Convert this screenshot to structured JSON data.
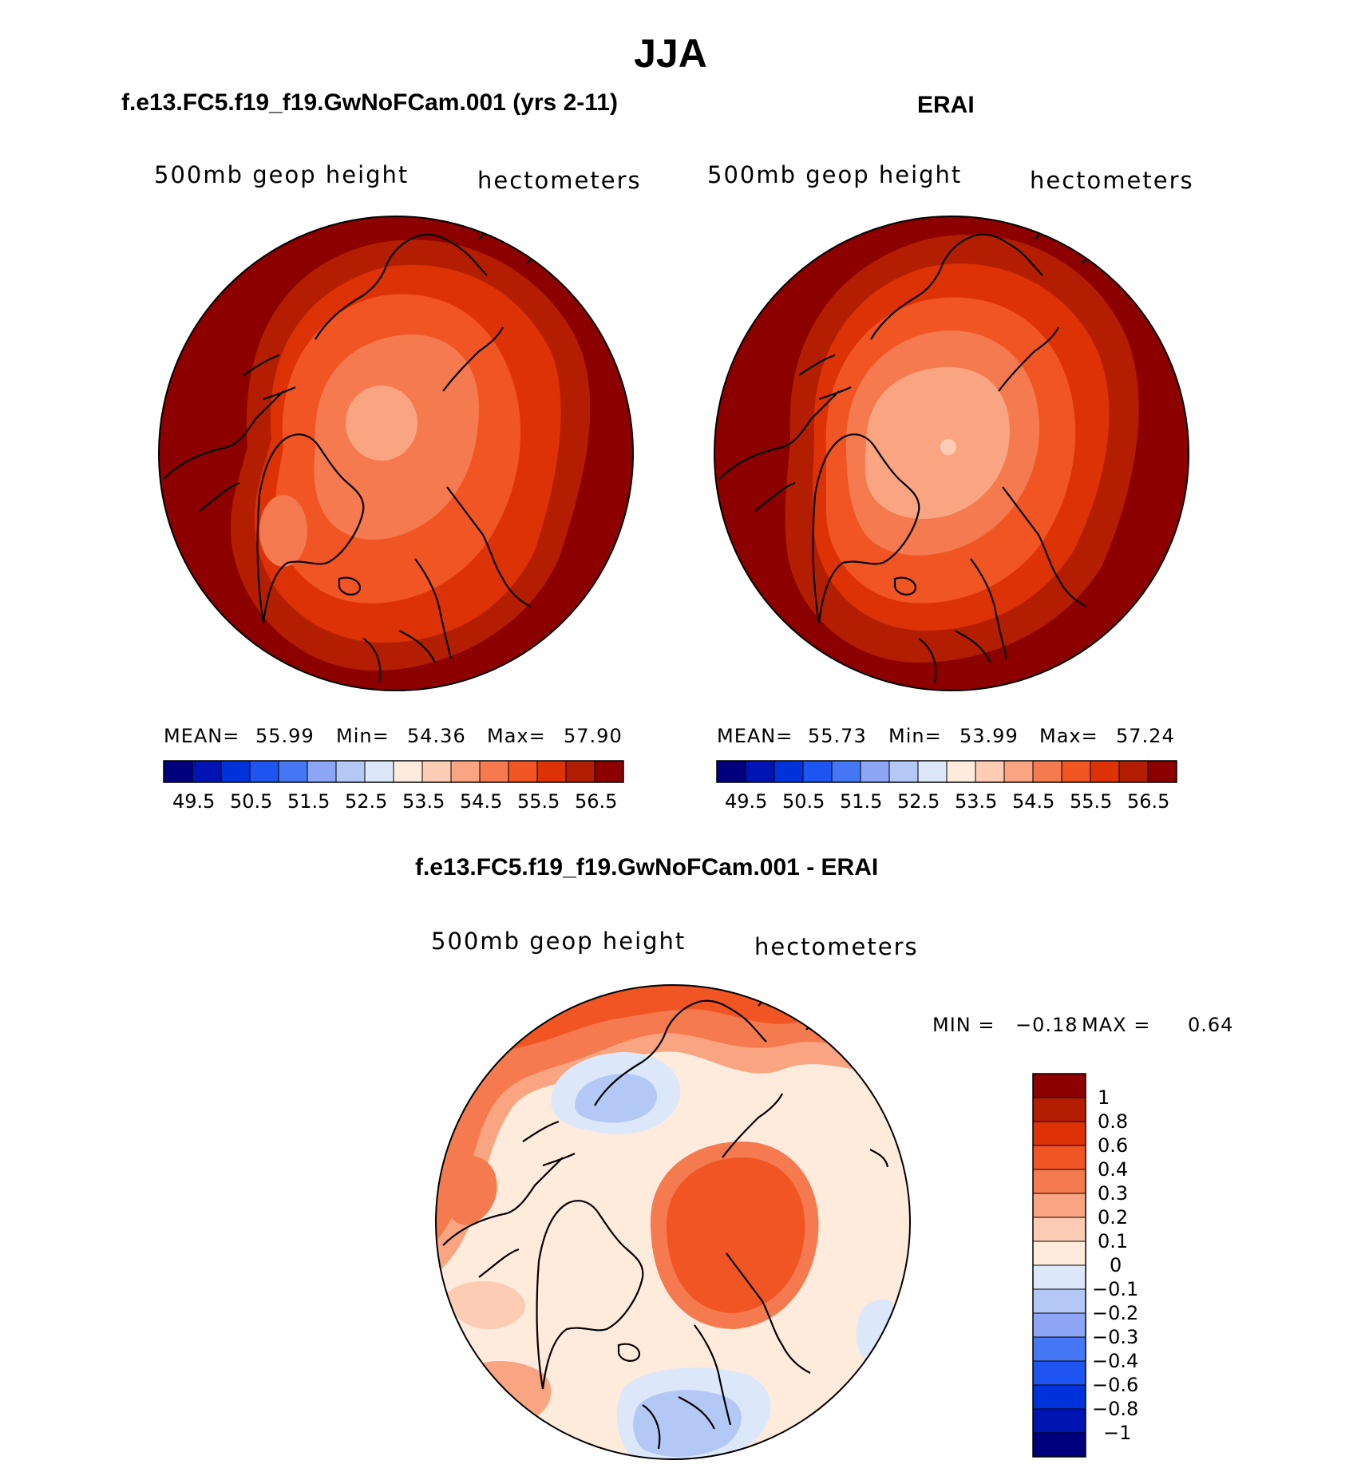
{
  "figure": {
    "title": "JJA"
  },
  "panels": [
    {
      "title": "f.e13.FC5.f19_f19.GwNoFCam.001 (yrs 2-11)",
      "variable": "500mb geop height",
      "units": "hectometers",
      "stats": {
        "mean_label": "MEAN=",
        "mean": "55.99",
        "min_label": "Min=",
        "min": "54.36",
        "max_label": "Max=",
        "max": "57.90"
      },
      "colorbar_ticks": [
        "49.5",
        "50.5",
        "51.5",
        "52.5",
        "53.5",
        "54.5",
        "55.5",
        "56.5"
      ]
    },
    {
      "title": "ERAI",
      "variable": "500mb geop height",
      "units": "hectometers",
      "stats": {
        "mean_label": "MEAN=",
        "mean": "55.73",
        "min_label": "Min=",
        "min": "53.99",
        "max_label": "Max=",
        "max": "57.24"
      },
      "colorbar_ticks": [
        "49.5",
        "50.5",
        "51.5",
        "52.5",
        "53.5",
        "54.5",
        "55.5",
        "56.5"
      ]
    },
    {
      "title": "f.e13.FC5.f19_f19.GwNoFCam.001 - ERAI",
      "variable": "500mb geop height",
      "units": "hectometers",
      "stats": {
        "min_label": "MIN =",
        "min": "−0.18",
        "max_label": "MAX =",
        "max": "0.64"
      },
      "colorbar_ticks": [
        "1",
        "0.8",
        "0.6",
        "0.4",
        "0.3",
        "0.2",
        "0.1",
        "0",
        "−0.1",
        "−0.2",
        "−0.3",
        "−0.4",
        "−0.6",
        "−0.8",
        "−1"
      ]
    }
  ],
  "colors": {
    "abs_scale": [
      "#00007f",
      "#0014b4",
      "#0032dc",
      "#1e55f0",
      "#4678f5",
      "#8ca5f5",
      "#b4c8f5",
      "#dce8fa",
      "#ffebdc",
      "#fccdb4",
      "#faa582",
      "#f57a50",
      "#f05523",
      "#dc3205",
      "#b41e00",
      "#8c0000"
    ],
    "diff_scale": [
      "#8c0000",
      "#b41e00",
      "#dc3205",
      "#f05523",
      "#f57a50",
      "#faa582",
      "#fccdb4",
      "#ffebdc",
      "#dce8fa",
      "#b4c8f5",
      "#8ca5f5",
      "#4678f5",
      "#1e55f0",
      "#0032dc",
      "#0014b4",
      "#00007f"
    ]
  },
  "chart_data": [
    {
      "type": "heatmap",
      "projection": "north-polar-stereographic",
      "title": "f.e13.FC5.f19_f19.GwNoFCam.001 (yrs 2-11)",
      "variable": "500mb geop height",
      "units": "hectometers",
      "mean": 55.99,
      "min": 54.36,
      "max": 57.9,
      "contour_levels": [
        49.5,
        50.0,
        50.5,
        51.0,
        51.5,
        52.0,
        52.5,
        53.0,
        53.5,
        54.0,
        54.5,
        55.0,
        55.5,
        56.0,
        56.5
      ],
      "contour_fill_levels": [
        54.5,
        55.0,
        55.5,
        56.0,
        56.5
      ]
    },
    {
      "type": "heatmap",
      "projection": "north-polar-stereographic",
      "title": "ERAI",
      "variable": "500mb geop height",
      "units": "hectometers",
      "mean": 55.73,
      "min": 53.99,
      "max": 57.24,
      "contour_levels": [
        49.5,
        50.0,
        50.5,
        51.0,
        51.5,
        52.0,
        52.5,
        53.0,
        53.5,
        54.0,
        54.5,
        55.0,
        55.5,
        56.0,
        56.5
      ],
      "contour_fill_levels": [
        54.0,
        54.5,
        55.0,
        55.5,
        56.0,
        56.5
      ]
    },
    {
      "type": "heatmap",
      "projection": "north-polar-stereographic",
      "title": "f.e13.FC5.f19_f19.GwNoFCam.001 - ERAI",
      "variable": "500mb geop height",
      "units": "hectometers",
      "min": -0.18,
      "max": 0.64,
      "contour_levels": [
        1,
        0.8,
        0.6,
        0.4,
        0.3,
        0.2,
        0.1,
        0,
        -0.1,
        -0.2,
        -0.3,
        -0.4,
        -0.6,
        -0.8,
        -1
      ]
    }
  ]
}
